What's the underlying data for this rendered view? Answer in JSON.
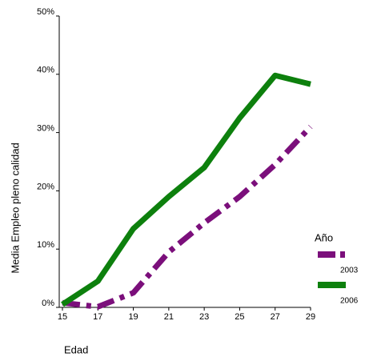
{
  "chart_data": {
    "type": "line",
    "x_label": "Edad",
    "y_label": "Media Empleo pleno calidad",
    "x": [
      15,
      17,
      19,
      21,
      23,
      25,
      27,
      29
    ],
    "xlim": [
      15,
      29
    ],
    "xticks": [
      15,
      17,
      19,
      21,
      23,
      25,
      27,
      29
    ],
    "ylim": [
      0,
      50
    ],
    "yticks": [
      {
        "value": 0,
        "label": "0%"
      },
      {
        "value": 10,
        "label": "10%"
      },
      {
        "value": 20,
        "label": "20%"
      },
      {
        "value": 30,
        "label": "30%"
      },
      {
        "value": 40,
        "label": "40%"
      },
      {
        "value": 50,
        "label": "50%"
      }
    ],
    "legend_title": "Año",
    "series": [
      {
        "name": "2003",
        "color": "#7b0f7b",
        "dash": "dashdot",
        "values": [
          0.8,
          0.1,
          2.5,
          9.5,
          14.5,
          19,
          24.5,
          31
        ]
      },
      {
        "name": "2006",
        "color": "#0d800d",
        "dash": "solid",
        "values": [
          0.5,
          4.5,
          13.5,
          19,
          24,
          32.5,
          39.8,
          38.3
        ]
      }
    ]
  }
}
